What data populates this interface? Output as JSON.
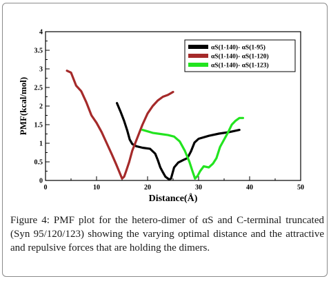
{
  "chart_data": {
    "type": "line",
    "title": "",
    "xlabel": "Distance(Å)",
    "ylabel": "PMF(kcal/mol)",
    "xlim": [
      0,
      50
    ],
    "ylim": [
      0,
      4
    ],
    "x_ticks": [
      "0",
      "10",
      "20",
      "30",
      "40",
      "50"
    ],
    "y_ticks": [
      "0",
      "0.5",
      "1",
      "1.5",
      "2",
      "2.5",
      "3",
      "3.5",
      "4"
    ],
    "grid": false,
    "legend_position": "top-right",
    "series": [
      {
        "name": "αS(1-140)- αS(1-95)",
        "color": "#000000",
        "x": [
          14.0,
          14.7,
          15.4,
          16.0,
          16.5,
          17.0,
          17.8,
          19.0,
          20.5,
          21.5,
          22.0,
          22.5,
          23.0,
          23.5,
          24.0,
          24.2,
          24.6,
          25.2,
          26.0,
          27.0,
          27.8,
          28.5,
          29.2,
          30.0,
          32.0,
          34.0,
          36.0,
          38.0
        ],
        "y": [
          2.08,
          1.85,
          1.6,
          1.35,
          1.1,
          0.98,
          0.92,
          0.88,
          0.85,
          0.72,
          0.55,
          0.35,
          0.22,
          0.1,
          0.05,
          0.03,
          0.05,
          0.35,
          0.48,
          0.55,
          0.6,
          0.78,
          1.02,
          1.12,
          1.2,
          1.26,
          1.3,
          1.36
        ]
      },
      {
        "name": "αS(1-140)- αS(1-120)",
        "color": "#a52a2a",
        "x": [
          4.2,
          5.0,
          6.0,
          7.0,
          8.0,
          9.0,
          10.0,
          11.0,
          12.0,
          13.0,
          13.8,
          14.4,
          15.0,
          15.4,
          15.8,
          16.4,
          17.0,
          18.0,
          19.0,
          20.0,
          21.0,
          22.0,
          23.0,
          24.0,
          25.0
        ],
        "y": [
          2.95,
          2.9,
          2.55,
          2.4,
          2.1,
          1.75,
          1.55,
          1.3,
          1.0,
          0.7,
          0.45,
          0.25,
          0.05,
          0.1,
          0.25,
          0.5,
          0.8,
          1.15,
          1.5,
          1.8,
          2.0,
          2.15,
          2.25,
          2.3,
          2.38
        ]
      },
      {
        "name": "αS(1-140)- αS(1-123)",
        "color": "#22e41f",
        "x": [
          19.0,
          20.0,
          21.0,
          22.5,
          24.0,
          25.2,
          26.3,
          27.3,
          28.2,
          28.8,
          29.3,
          29.8,
          30.3,
          31.0,
          32.0,
          32.8,
          33.5,
          34.2,
          35.0,
          35.8,
          36.5,
          37.2,
          38.0,
          38.7
        ],
        "y": [
          1.36,
          1.32,
          1.28,
          1.25,
          1.22,
          1.18,
          1.05,
          0.8,
          0.5,
          0.25,
          0.05,
          0.12,
          0.25,
          0.38,
          0.35,
          0.45,
          0.6,
          0.9,
          1.1,
          1.3,
          1.5,
          1.6,
          1.68,
          1.68
        ]
      }
    ]
  },
  "caption": {
    "label": "Figure 4:",
    "text": "PMF plot for the hetero-dimer of αS and C-terminal truncated (Syn 95/120/123) showing the varying optimal distance and the attractive and repulsive forces that are holding the dimers."
  }
}
